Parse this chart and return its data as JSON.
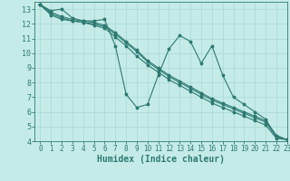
{
  "xlabel": "Humidex (Indice chaleur)",
  "background_color": "#c5ebe8",
  "grid_color": "#a8d8d4",
  "line_color": "#2d7a72",
  "xlim": [
    -0.5,
    23
  ],
  "ylim": [
    4,
    13.5
  ],
  "x_ticks": [
    0,
    1,
    2,
    3,
    4,
    5,
    6,
    7,
    8,
    9,
    10,
    11,
    12,
    13,
    14,
    15,
    16,
    17,
    18,
    19,
    20,
    21,
    22,
    23
  ],
  "y_ticks": [
    4,
    5,
    6,
    7,
    8,
    9,
    10,
    11,
    12,
    13
  ],
  "series": [
    [
      13.3,
      12.9,
      13.0,
      12.4,
      12.2,
      12.2,
      12.3,
      10.5,
      7.2,
      6.3,
      6.5,
      8.5,
      10.3,
      11.2,
      10.8,
      9.3,
      10.5,
      8.5,
      7.0,
      6.5,
      6.0,
      5.5,
      4.3,
      4.1
    ],
    [
      13.3,
      12.8,
      12.5,
      12.3,
      12.2,
      12.1,
      11.9,
      11.4,
      10.8,
      10.2,
      9.5,
      9.0,
      8.5,
      8.1,
      7.7,
      7.3,
      6.9,
      6.6,
      6.3,
      6.0,
      5.7,
      5.4,
      4.4,
      4.1
    ],
    [
      13.3,
      12.7,
      12.4,
      12.2,
      12.1,
      12.0,
      11.8,
      11.3,
      10.7,
      10.1,
      9.4,
      8.9,
      8.4,
      8.0,
      7.6,
      7.2,
      6.8,
      6.5,
      6.2,
      5.9,
      5.6,
      5.3,
      4.3,
      4.1
    ],
    [
      13.3,
      12.6,
      12.3,
      12.2,
      12.1,
      11.9,
      11.7,
      11.1,
      10.5,
      9.8,
      9.2,
      8.7,
      8.2,
      7.8,
      7.4,
      7.0,
      6.6,
      6.3,
      6.0,
      5.7,
      5.4,
      5.1,
      4.2,
      4.1
    ]
  ],
  "tick_fontsize": 5.5,
  "xlabel_fontsize": 7.0,
  "marker_size": 2.5,
  "line_width": 0.8
}
